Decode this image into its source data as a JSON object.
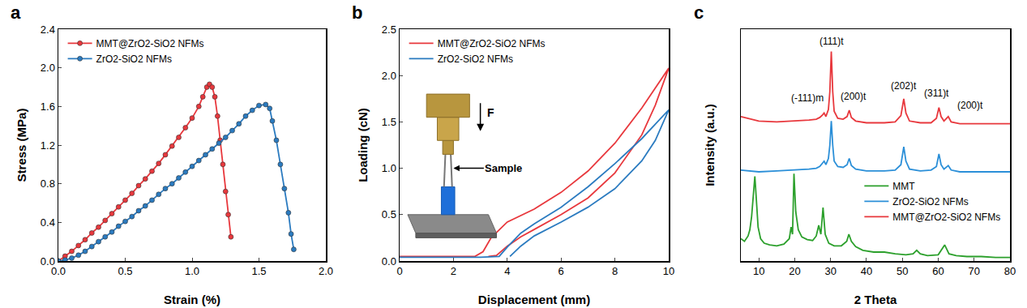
{
  "chart_data": [
    {
      "panel": "a",
      "type": "line",
      "marker": "circle",
      "grid": false,
      "legend": "top left",
      "x_label": "Strain (%)",
      "y_label": "Stress (MPa)",
      "xlim": [
        0,
        2.0
      ],
      "xticks": [
        {
          "value": 0,
          "label": "0.0"
        },
        0.5,
        {
          "value": 1,
          "label": "1.0"
        },
        1.5,
        {
          "value": 2,
          "label": "2.0"
        }
      ],
      "ylim": [
        0,
        2.4
      ],
      "yticks": [
        {
          "value": 0,
          "label": "0.0"
        },
        0.4,
        0.8,
        1.2,
        1.6,
        {
          "value": 2,
          "label": "2.0"
        },
        2.4
      ],
      "series": [
        {
          "name": "MMT@ZrO2-SiO2 NFMs",
          "color": "#e8383d",
          "x": [
            0,
            0.05,
            0.1,
            0.15,
            0.2,
            0.25,
            0.3,
            0.35,
            0.4,
            0.45,
            0.5,
            0.55,
            0.6,
            0.65,
            0.7,
            0.75,
            0.8,
            0.85,
            0.9,
            0.95,
            1.0,
            1.05,
            1.08,
            1.11,
            1.13,
            1.15,
            1.17,
            1.19,
            1.21,
            1.23,
            1.25,
            1.27,
            1.29
          ],
          "values": [
            0,
            0.05,
            0.1,
            0.16,
            0.22,
            0.29,
            0.35,
            0.42,
            0.49,
            0.56,
            0.63,
            0.7,
            0.78,
            0.85,
            0.93,
            1.01,
            1.1,
            1.19,
            1.28,
            1.38,
            1.48,
            1.6,
            1.7,
            1.8,
            1.83,
            1.8,
            1.7,
            1.5,
            1.25,
            1.0,
            0.72,
            0.48,
            0.25
          ]
        },
        {
          "name": "ZrO2-SiO2 NFMs",
          "color": "#2b7bc0",
          "x": [
            0,
            0.05,
            0.1,
            0.15,
            0.2,
            0.25,
            0.3,
            0.35,
            0.4,
            0.45,
            0.5,
            0.55,
            0.6,
            0.65,
            0.7,
            0.75,
            0.8,
            0.85,
            0.9,
            0.95,
            1.0,
            1.05,
            1.1,
            1.15,
            1.2,
            1.25,
            1.3,
            1.35,
            1.4,
            1.45,
            1.5,
            1.55,
            1.58,
            1.6,
            1.63,
            1.66,
            1.69,
            1.72,
            1.74,
            1.76
          ],
          "values": [
            0,
            0.01,
            0.03,
            0.06,
            0.1,
            0.15,
            0.2,
            0.25,
            0.3,
            0.36,
            0.41,
            0.46,
            0.52,
            0.57,
            0.63,
            0.69,
            0.75,
            0.8,
            0.86,
            0.92,
            0.98,
            1.04,
            1.1,
            1.16,
            1.22,
            1.28,
            1.35,
            1.42,
            1.5,
            1.56,
            1.61,
            1.62,
            1.58,
            1.45,
            1.25,
            1.0,
            0.75,
            0.5,
            0.28,
            0.12
          ]
        }
      ]
    },
    {
      "panel": "b",
      "type": "line",
      "grid": false,
      "legend": "top left",
      "x_label": "Displacement (mm)",
      "y_label": "Loading (cN)",
      "xlim": [
        0,
        10
      ],
      "xticks": [
        0,
        2,
        4,
        6,
        8,
        10
      ],
      "ylim": [
        0,
        2.5
      ],
      "yticks": [
        {
          "value": 0,
          "label": "0.0"
        },
        0.5,
        {
          "value": 1,
          "label": "1.0"
        },
        1.5,
        {
          "value": 2,
          "label": "2.0"
        },
        2.5
      ],
      "annotations": [
        {
          "text": "F"
        },
        {
          "text": "Sample"
        }
      ],
      "series": [
        {
          "name": "MMT@ZrO2-SiO2 NFMs",
          "color": "#e8383d",
          "x": [
            0,
            1,
            2,
            2.8,
            3.1,
            3.4,
            4,
            5,
            6,
            7,
            8,
            9,
            10,
            9.5,
            9,
            8,
            7,
            6,
            5,
            4.5,
            4,
            3.6,
            3.3
          ],
          "values": [
            0.05,
            0.05,
            0.05,
            0.05,
            0.1,
            0.25,
            0.42,
            0.56,
            0.74,
            0.97,
            1.27,
            1.65,
            2.08,
            1.68,
            1.36,
            0.95,
            0.68,
            0.5,
            0.34,
            0.26,
            0.16,
            0.06,
            0.05
          ]
        },
        {
          "name": "ZrO2-SiO2 NFMs",
          "color": "#2b7bc0",
          "x": [
            0,
            1,
            2,
            3,
            3.7,
            4,
            4.5,
            5,
            6,
            7,
            8,
            9,
            10,
            9.5,
            9,
            8,
            7,
            6,
            5,
            4.5,
            4.1
          ],
          "values": [
            0.04,
            0.04,
            0.04,
            0.04,
            0.05,
            0.15,
            0.3,
            0.4,
            0.58,
            0.8,
            1.05,
            1.32,
            1.63,
            1.3,
            1.08,
            0.78,
            0.58,
            0.42,
            0.27,
            0.16,
            0.05
          ]
        }
      ]
    },
    {
      "panel": "c",
      "type": "line",
      "grid": false,
      "legend": "bottom right",
      "tick_labels": "x",
      "x_label": "2 Theta",
      "y_label": "Intensity (a.u.)",
      "xlim": [
        5,
        80
      ],
      "xticks": [
        10,
        20,
        30,
        40,
        50,
        60,
        70,
        80
      ],
      "ylim": [
        0,
        2.6
      ],
      "annotations": [
        {
          "text": "(111)t",
          "x": 30.2,
          "y": 2.38
        },
        {
          "text": "(-111)m",
          "x": 23.5,
          "y": 1.75
        },
        {
          "text": "(200)t",
          "x": 36.5,
          "y": 1.76
        },
        {
          "text": "(202)t",
          "x": 50.4,
          "y": 1.88
        },
        {
          "text": "(311)t",
          "x": 59.5,
          "y": 1.8
        },
        {
          "text": "(200)t",
          "x": 69,
          "y": 1.66
        }
      ],
      "series": [
        {
          "name": "MMT",
          "color": "#2ca02c",
          "x": [
            5,
            6,
            7,
            7.5,
            8,
            8.5,
            8.9,
            9.3,
            9.8,
            10.5,
            11.5,
            13,
            15,
            17,
            18.5,
            19,
            19.4,
            19.8,
            20.3,
            21,
            22,
            23.5,
            25,
            26,
            26.7,
            27.3,
            27.9,
            28.5,
            29.5,
            31,
            33,
            34.5,
            35.1,
            35.8,
            37,
            39,
            42,
            45,
            48,
            51,
            53,
            54,
            55,
            57,
            60,
            61.8,
            63,
            65,
            68,
            72,
            76,
            80
          ],
          "values": [
            0.25,
            0.22,
            0.28,
            0.35,
            0.5,
            0.72,
            0.95,
            0.7,
            0.38,
            0.25,
            0.2,
            0.18,
            0.17,
            0.19,
            0.25,
            0.38,
            0.3,
            0.98,
            0.55,
            0.35,
            0.27,
            0.24,
            0.23,
            0.28,
            0.4,
            0.3,
            0.6,
            0.3,
            0.2,
            0.17,
            0.17,
            0.22,
            0.3,
            0.22,
            0.16,
            0.12,
            0.1,
            0.1,
            0.08,
            0.07,
            0.08,
            0.12,
            0.08,
            0.06,
            0.07,
            0.18,
            0.08,
            0.06,
            0.05,
            0.05,
            0.04,
            0.04
          ]
        },
        {
          "name": "ZrO2-SiO2 NFMs",
          "color": "#2b8fd8",
          "x": [
            5,
            10,
            15,
            20,
            24,
            26,
            27,
            27.8,
            28.2,
            28.7,
            29.4,
            29.8,
            30.2,
            30.6,
            31,
            32,
            33.5,
            34.6,
            35.2,
            35.8,
            37,
            40,
            45,
            48,
            49.6,
            50.4,
            51,
            52,
            55,
            58,
            59.5,
            60.2,
            60.8,
            61.6,
            62.8,
            63.6,
            66,
            70,
            75,
            80
          ],
          "values": [
            1.02,
            1.0,
            1.01,
            1.02,
            1.03,
            1.04,
            1.06,
            1.1,
            1.12,
            1.08,
            1.15,
            1.3,
            1.57,
            1.3,
            1.12,
            1.06,
            1.05,
            1.08,
            1.15,
            1.07,
            1.03,
            1.01,
            1.01,
            1.02,
            1.08,
            1.28,
            1.12,
            1.03,
            1.01,
            1.02,
            1.06,
            1.2,
            1.08,
            1.03,
            1.07,
            1.02,
            1.0,
            1.0,
            1.0,
            1.0
          ]
        },
        {
          "name": "MMT@ZrO2-SiO2 NFMs",
          "color": "#e8383d",
          "x": [
            5,
            10,
            15,
            20,
            24,
            26,
            27,
            27.8,
            28.2,
            28.7,
            29.4,
            29.8,
            30.2,
            30.6,
            31,
            32,
            33.5,
            34.6,
            35.2,
            35.8,
            37,
            40,
            45,
            48,
            49.6,
            50.4,
            51,
            52,
            55,
            58,
            59.5,
            60.2,
            60.8,
            61.6,
            62.8,
            63.6,
            66,
            70,
            75,
            80
          ],
          "values": [
            1.62,
            1.57,
            1.56,
            1.57,
            1.58,
            1.59,
            1.61,
            1.64,
            1.66,
            1.62,
            1.7,
            1.9,
            2.35,
            1.9,
            1.68,
            1.6,
            1.59,
            1.62,
            1.69,
            1.61,
            1.57,
            1.55,
            1.55,
            1.56,
            1.63,
            1.82,
            1.66,
            1.57,
            1.55,
            1.55,
            1.6,
            1.72,
            1.62,
            1.57,
            1.62,
            1.56,
            1.54,
            1.54,
            1.54,
            1.54
          ]
        }
      ]
    }
  ]
}
